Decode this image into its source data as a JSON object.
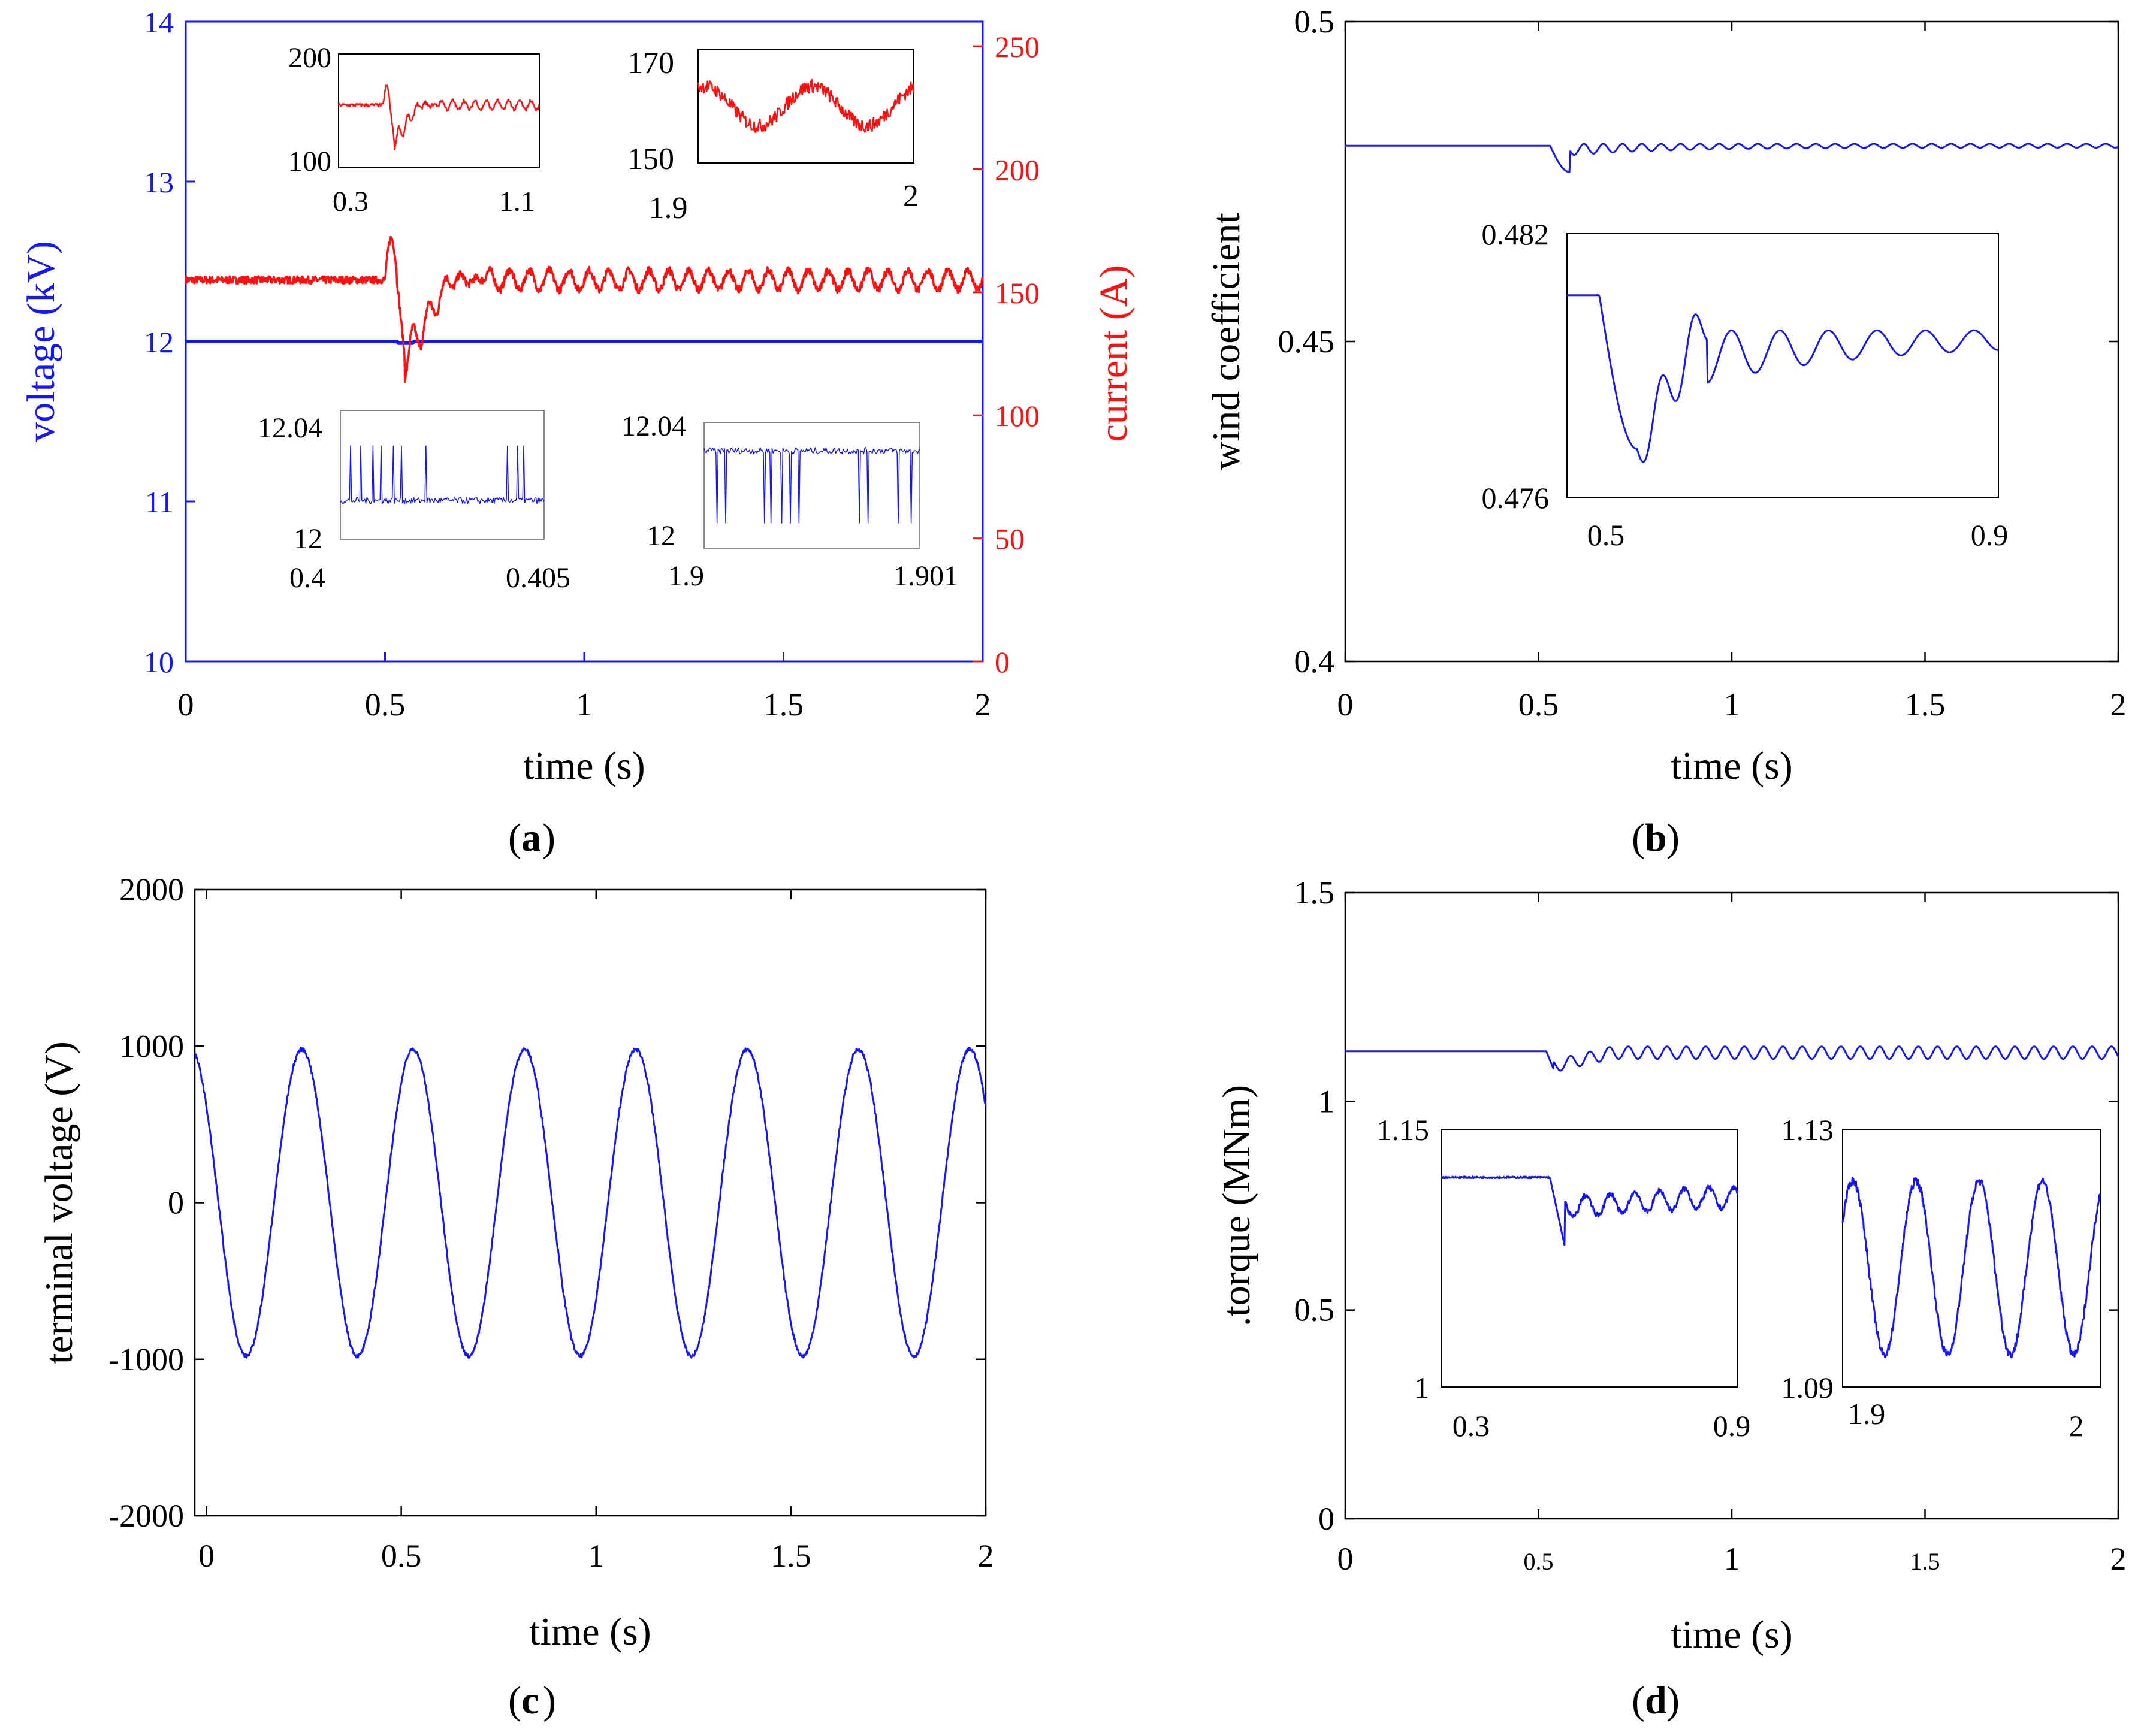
{
  "figure": {
    "panel_labels": [
      "a",
      "b",
      "c",
      "d"
    ],
    "colors": {
      "voltage": "#1515ff",
      "current": "#ff1010",
      "axis": "#000000",
      "inset_frame": "#888888"
    }
  },
  "chart_data": [
    {
      "id": "a",
      "type": "line",
      "panel_label": "a",
      "xlabel": "time (s)",
      "ylabel": "voltage (kV)",
      "ylabel_right": "current (A)",
      "xlim": [
        0,
        2
      ],
      "ylim": [
        10,
        14
      ],
      "ylim_right": [
        0,
        260
      ],
      "xticks": [
        "0",
        "0.5",
        "1",
        "1.5",
        "2"
      ],
      "yticks": [
        "10",
        "11",
        "12",
        "13",
        "14"
      ],
      "yticks_right": [
        "0",
        "50",
        "100",
        "150",
        "200",
        "250"
      ],
      "series": [
        {
          "name": "voltage",
          "axis": "left",
          "color": "#1515ff",
          "baseline": 12.0,
          "disturbance": {
            "t": 0.55,
            "dip": -0.01
          }
        },
        {
          "name": "current",
          "axis": "right",
          "color": "#ff1010",
          "baseline": 155,
          "disturbance": {
            "t_start": 0.5,
            "t_min": 0.55,
            "min": 123,
            "peak": 172,
            "settle": 0.75
          },
          "oscillation": {
            "amplitude": 4,
            "period_s": 0.05
          }
        }
      ],
      "insets": [
        {
          "id": "a1",
          "series": "current",
          "xlim": [
            0.3,
            1.2
          ],
          "ylim": [
            100,
            200
          ],
          "xticks": [
            "0.3",
            "1.1"
          ],
          "yticks": [
            "100",
            "200"
          ]
        },
        {
          "id": "a2",
          "series": "current",
          "xlim": [
            1.9,
            2.0
          ],
          "ylim": [
            150,
            170
          ],
          "xticks": [
            "1.9",
            "2"
          ],
          "yticks": [
            "150",
            "170"
          ]
        },
        {
          "id": "a3",
          "series": "voltage",
          "xlim": [
            0.4,
            0.405
          ],
          "ylim": [
            12.0,
            12.04
          ],
          "xticks": [
            "0.4",
            "0.405"
          ],
          "yticks": [
            "12",
            "12.04"
          ],
          "spikes": "up"
        },
        {
          "id": "a4",
          "series": "voltage",
          "xlim": [
            1.9,
            1.901
          ],
          "ylim": [
            12.0,
            12.04
          ],
          "xticks": [
            "1.9",
            "1.901"
          ],
          "yticks": [
            "12",
            "12.04"
          ],
          "spikes": "down"
        }
      ]
    },
    {
      "id": "b",
      "type": "line",
      "panel_label": "b",
      "xlabel": "time (s)",
      "ylabel": "wind coefficient",
      "xlim": [
        0,
        2
      ],
      "ylim": [
        0.4,
        0.5
      ],
      "xticks": [
        "0",
        "0.5",
        "1",
        "1.5",
        "2"
      ],
      "yticks": [
        "0.4",
        "0.45",
        "0.5"
      ],
      "series": [
        {
          "name": "wind coefficient",
          "color": "#1515ff",
          "baseline": 0.4806,
          "disturbance": {
            "t": 0.53,
            "min": 0.4765,
            "settle": 0.8
          }
        }
      ],
      "insets": [
        {
          "id": "b1",
          "xlim": [
            0.5,
            0.9
          ],
          "ylim": [
            0.476,
            0.482
          ],
          "xticks": [
            "0.5",
            "0.9"
          ],
          "yticks": [
            "0.476",
            "0.482"
          ]
        }
      ]
    },
    {
      "id": "c",
      "type": "line",
      "panel_label": "c",
      "xlabel": "time (s)",
      "ylabel": "terminal voltage (V)",
      "xlim": [
        -0.03,
        2.0
      ],
      "ylim": [
        -2000,
        2000
      ],
      "xticks": [
        "0",
        "0.5",
        "1",
        "1.5",
        "2"
      ],
      "yticks": [
        "-2000",
        "-1000",
        "0",
        "1000",
        "2000"
      ],
      "series": [
        {
          "name": "terminal voltage",
          "color": "#1515ff",
          "amplitude": 980,
          "period_s": 0.2857
        }
      ]
    },
    {
      "id": "d",
      "type": "line",
      "panel_label": "d",
      "xlabel": "time (s)",
      "ylabel": ".torque (MNm)",
      "xlim": [
        0,
        2
      ],
      "ylim": [
        0,
        1.5
      ],
      "xticks": [
        "0",
        "0.5",
        "1",
        "1.5",
        "2"
      ],
      "yticks": [
        "0",
        "0.5",
        "1",
        "1.5"
      ],
      "series": [
        {
          "name": "torque",
          "color": "#1515ff",
          "baseline": 1.12,
          "disturbance": {
            "t": 0.52,
            "min": 1.075
          },
          "oscillation": {
            "amplitude": 0.015,
            "period_s": 0.05
          }
        }
      ],
      "insets": [
        {
          "id": "d1",
          "xlim": [
            0.3,
            0.9
          ],
          "ylim": [
            1.0,
            1.15
          ],
          "xticks": [
            "0.3",
            "0.9"
          ],
          "yticks": [
            "1",
            "1.15"
          ]
        },
        {
          "id": "d2",
          "xlim": [
            1.9,
            2.0
          ],
          "ylim": [
            1.09,
            1.13
          ],
          "xticks": [
            "1.9",
            "2"
          ],
          "yticks": [
            "1.09",
            "1.13"
          ]
        }
      ]
    }
  ]
}
